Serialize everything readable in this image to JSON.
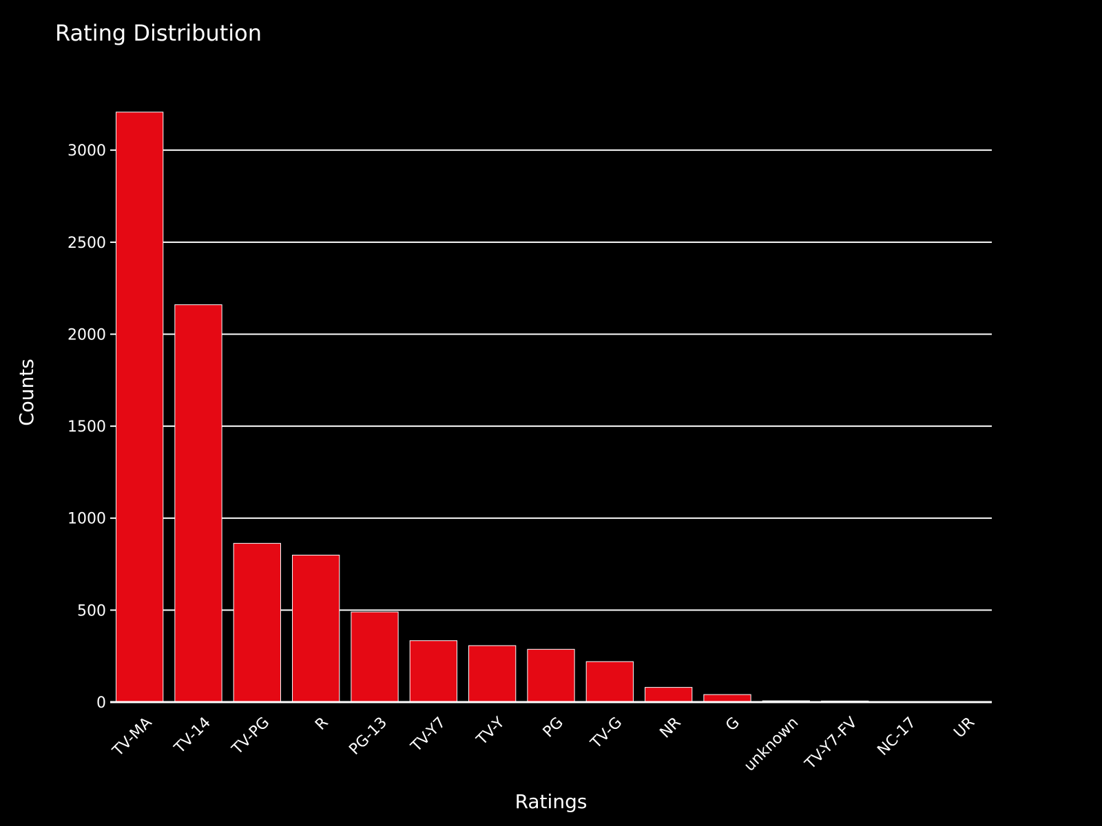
{
  "chart_data": {
    "type": "bar",
    "title": "Rating Distribution",
    "xlabel": "Ratings",
    "ylabel": "Counts",
    "categories": [
      "TV-MA",
      "TV-14",
      "TV-PG",
      "R",
      "PG-13",
      "TV-Y7",
      "TV-Y",
      "PG",
      "TV-G",
      "NR",
      "G",
      "unknown",
      "TV-Y7-FV",
      "NC-17",
      "UR"
    ],
    "values": [
      3207,
      2160,
      863,
      799,
      490,
      334,
      307,
      287,
      220,
      80,
      41,
      7,
      6,
      3,
      3
    ],
    "ylim": [
      0,
      3300
    ],
    "yticks": [
      0,
      500,
      1000,
      1500,
      2000,
      2500,
      3000
    ],
    "grid": true,
    "bar_color": "#e50914",
    "background_color": "#000000",
    "text_color": "#ffffff"
  }
}
